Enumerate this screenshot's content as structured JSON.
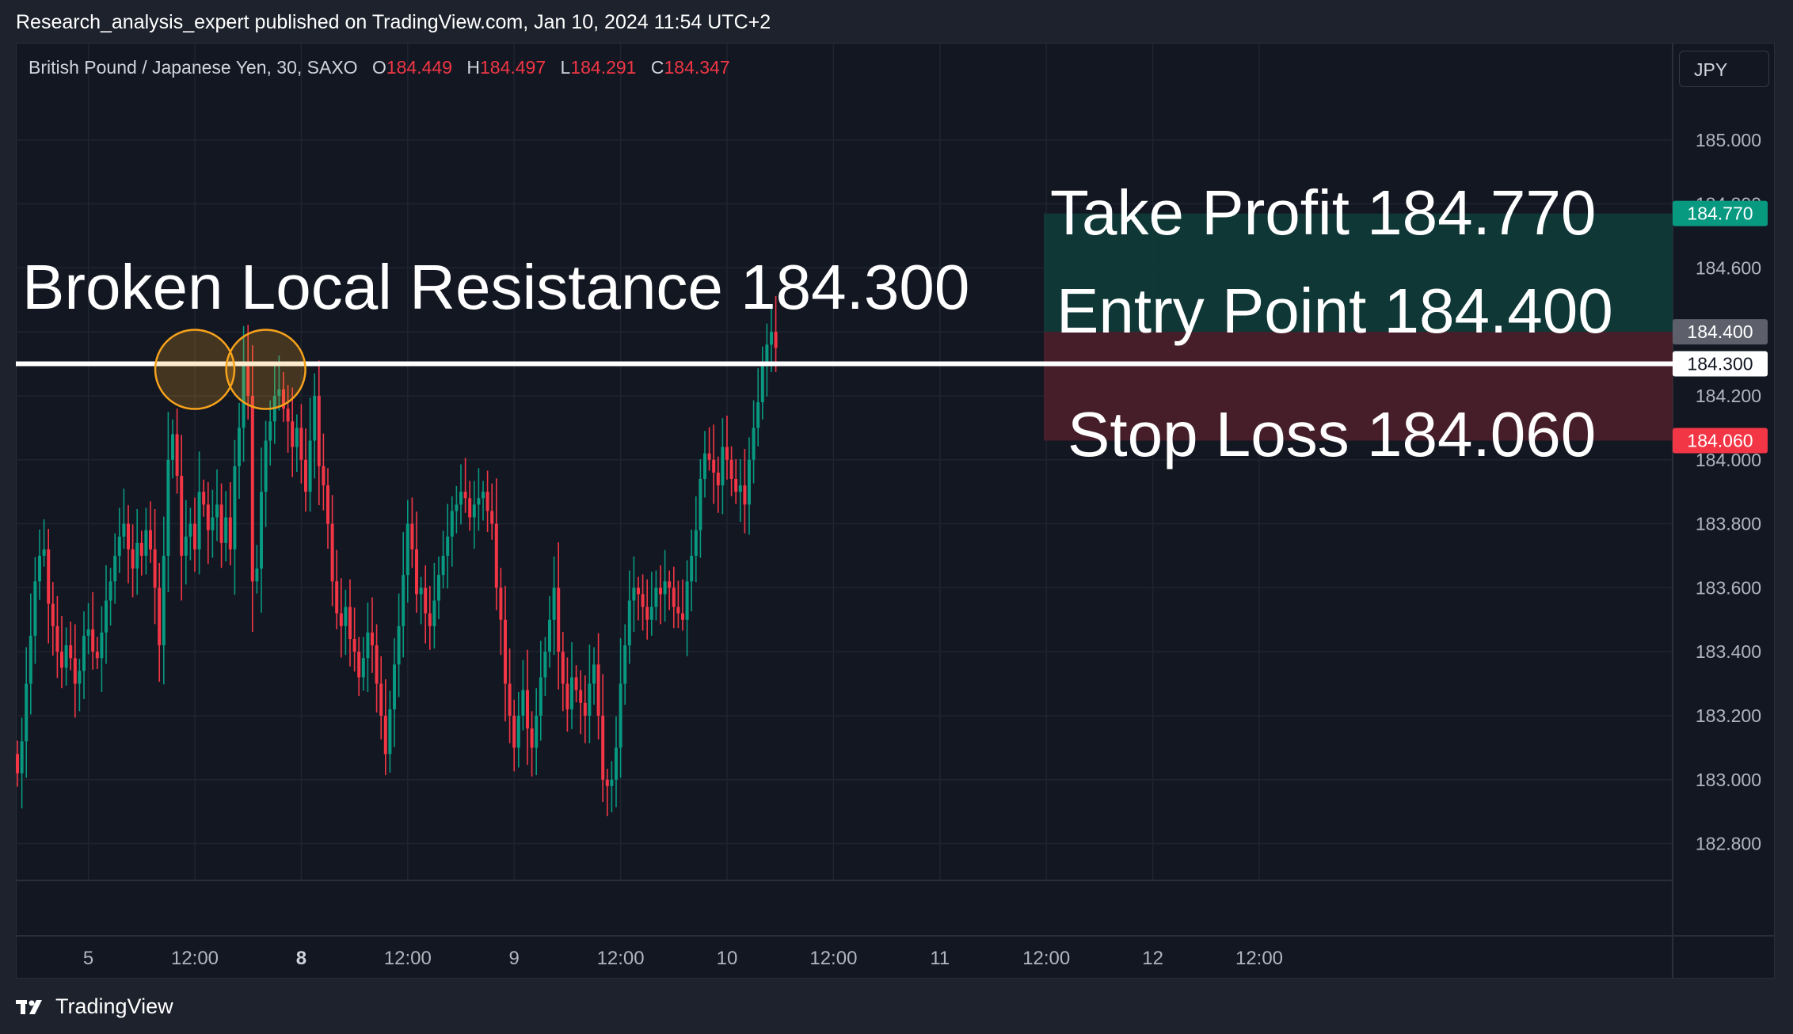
{
  "header": {
    "published": "Research_analysis_expert published on TradingView.com, Jan 10, 2024 11:54 UTC+2"
  },
  "legend": {
    "symbol": "British Pound / Japanese Yen, 30, SAXO",
    "o_label": "O",
    "o_value": "184.449",
    "h_label": "H",
    "h_value": "184.497",
    "l_label": "L",
    "l_value": "184.291",
    "c_label": "C",
    "c_value": "184.347"
  },
  "currency": "JPY",
  "footer": {
    "brand": "TradingView"
  },
  "colors": {
    "up": "#089981",
    "down": "#f23645",
    "background": "#131722",
    "profit_zone": "#0f3b38",
    "loss_zone": "#4c1f2b",
    "circle": "#f7a21b"
  },
  "chart_data": {
    "type": "candlestick",
    "ylim": [
      182.69,
      185.19
    ],
    "y_ticks": [
      "185.000",
      "184.800",
      "184.600",
      "184.400",
      "184.200",
      "184.000",
      "183.800",
      "183.600",
      "183.400",
      "183.200",
      "183.000",
      "182.800"
    ],
    "x_ticks": [
      {
        "label": "5",
        "i": 16,
        "bold": false
      },
      {
        "label": "12:00",
        "i": 40,
        "bold": false
      },
      {
        "label": "8",
        "i": 64,
        "bold": true
      },
      {
        "label": "12:00",
        "i": 88,
        "bold": false
      },
      {
        "label": "9",
        "i": 112,
        "bold": false
      },
      {
        "label": "12:00",
        "i": 136,
        "bold": false
      },
      {
        "label": "10",
        "i": 160,
        "bold": false
      },
      {
        "label": "12:00",
        "i": 184,
        "bold": false
      },
      {
        "label": "11",
        "i": 208,
        "bold": false
      },
      {
        "label": "12:00",
        "i": 232,
        "bold": false
      },
      {
        "label": "12",
        "i": 256,
        "bold": false
      },
      {
        "label": "12:00",
        "i": 280,
        "bold": false
      }
    ],
    "closes": [
      183.02,
      183.12,
      183.3,
      183.45,
      183.62,
      183.7,
      183.72,
      183.55,
      183.48,
      183.4,
      183.35,
      183.42,
      183.38,
      183.3,
      183.34,
      183.45,
      183.47,
      183.4,
      183.38,
      183.46,
      183.56,
      183.62,
      183.7,
      183.76,
      183.8,
      183.72,
      183.66,
      183.74,
      183.7,
      183.78,
      183.72,
      183.6,
      183.42,
      183.7,
      184.0,
      184.08,
      183.95,
      183.7,
      183.76,
      183.8,
      183.72,
      183.9,
      183.86,
      183.78,
      183.82,
      183.86,
      183.74,
      183.82,
      183.72,
      183.98,
      184.1,
      184.3,
      184.2,
      183.62,
      183.66,
      183.9,
      184.06,
      184.12,
      184.2,
      184.22,
      184.16,
      184.12,
      184.04,
      184.1,
      184.0,
      183.9,
      184.06,
      184.2,
      183.98,
      183.92,
      183.8,
      183.62,
      183.52,
      183.48,
      183.54,
      183.44,
      183.4,
      183.32,
      183.38,
      183.46,
      183.42,
      183.3,
      183.2,
      183.08,
      183.22,
      183.36,
      183.48,
      183.64,
      183.8,
      183.72,
      183.58,
      183.6,
      183.52,
      183.48,
      183.56,
      183.64,
      183.7,
      183.76,
      183.84,
      183.86,
      183.9,
      183.88,
      183.82,
      183.86,
      183.88,
      183.9,
      183.84,
      183.8,
      183.6,
      183.5,
      183.3,
      183.2,
      183.1,
      183.2,
      183.28,
      183.16,
      183.1,
      183.2,
      183.32,
      183.4,
      183.5,
      183.6,
      183.4,
      183.3,
      183.22,
      183.32,
      183.28,
      183.24,
      183.2,
      183.3,
      183.36,
      183.2,
      183.0,
      182.98,
      183.0,
      183.1,
      183.3,
      183.42,
      183.56,
      183.6,
      183.58,
      183.54,
      183.5,
      183.54,
      183.6,
      183.58,
      183.62,
      183.6,
      183.54,
      183.52,
      183.5,
      183.62,
      183.7,
      183.78,
      183.94,
      184.02,
      184.0,
      183.96,
      183.92,
      184.04,
      184.0,
      183.94,
      183.9,
      183.92,
      183.86,
      184.0,
      184.1,
      184.18,
      184.3,
      184.36,
      184.4,
      184.35
    ]
  },
  "annotations": {
    "resistance_label": "Broken Local Resistance 184.300",
    "resistance_price": 184.3,
    "take_profit_label": "Take Profit 184.770",
    "take_profit_price": 184.77,
    "entry_label": "Entry Point 184.400",
    "entry_price": 184.4,
    "stop_loss_label": "Stop Loss 184.060",
    "stop_loss_price": 184.06,
    "price_tags": [
      "184.770",
      "184.400",
      "184.300",
      "184.060"
    ],
    "circles": [
      40,
      56
    ]
  }
}
